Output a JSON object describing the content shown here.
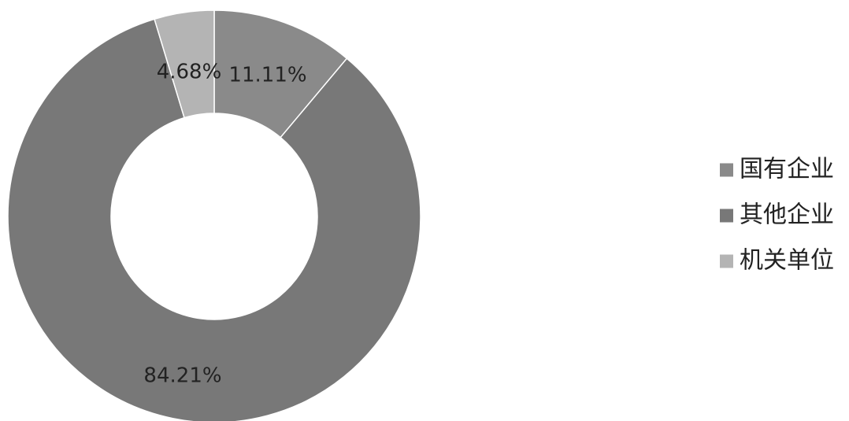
{
  "chart_data": {
    "type": "pie",
    "style": "donut",
    "series": [
      {
        "name": "国有企业",
        "value": 11.11,
        "label": "11.11%",
        "color": "#8a8a8a"
      },
      {
        "name": "其他企业",
        "value": 84.21,
        "label": "84.21%",
        "color": "#787878"
      },
      {
        "name": "机关单位",
        "value": 4.68,
        "label": "4.68%",
        "color": "#b4b4b4"
      }
    ],
    "legend": {
      "position": "right",
      "entries": [
        "国有企业",
        "其他企业",
        "机关单位"
      ]
    }
  }
}
